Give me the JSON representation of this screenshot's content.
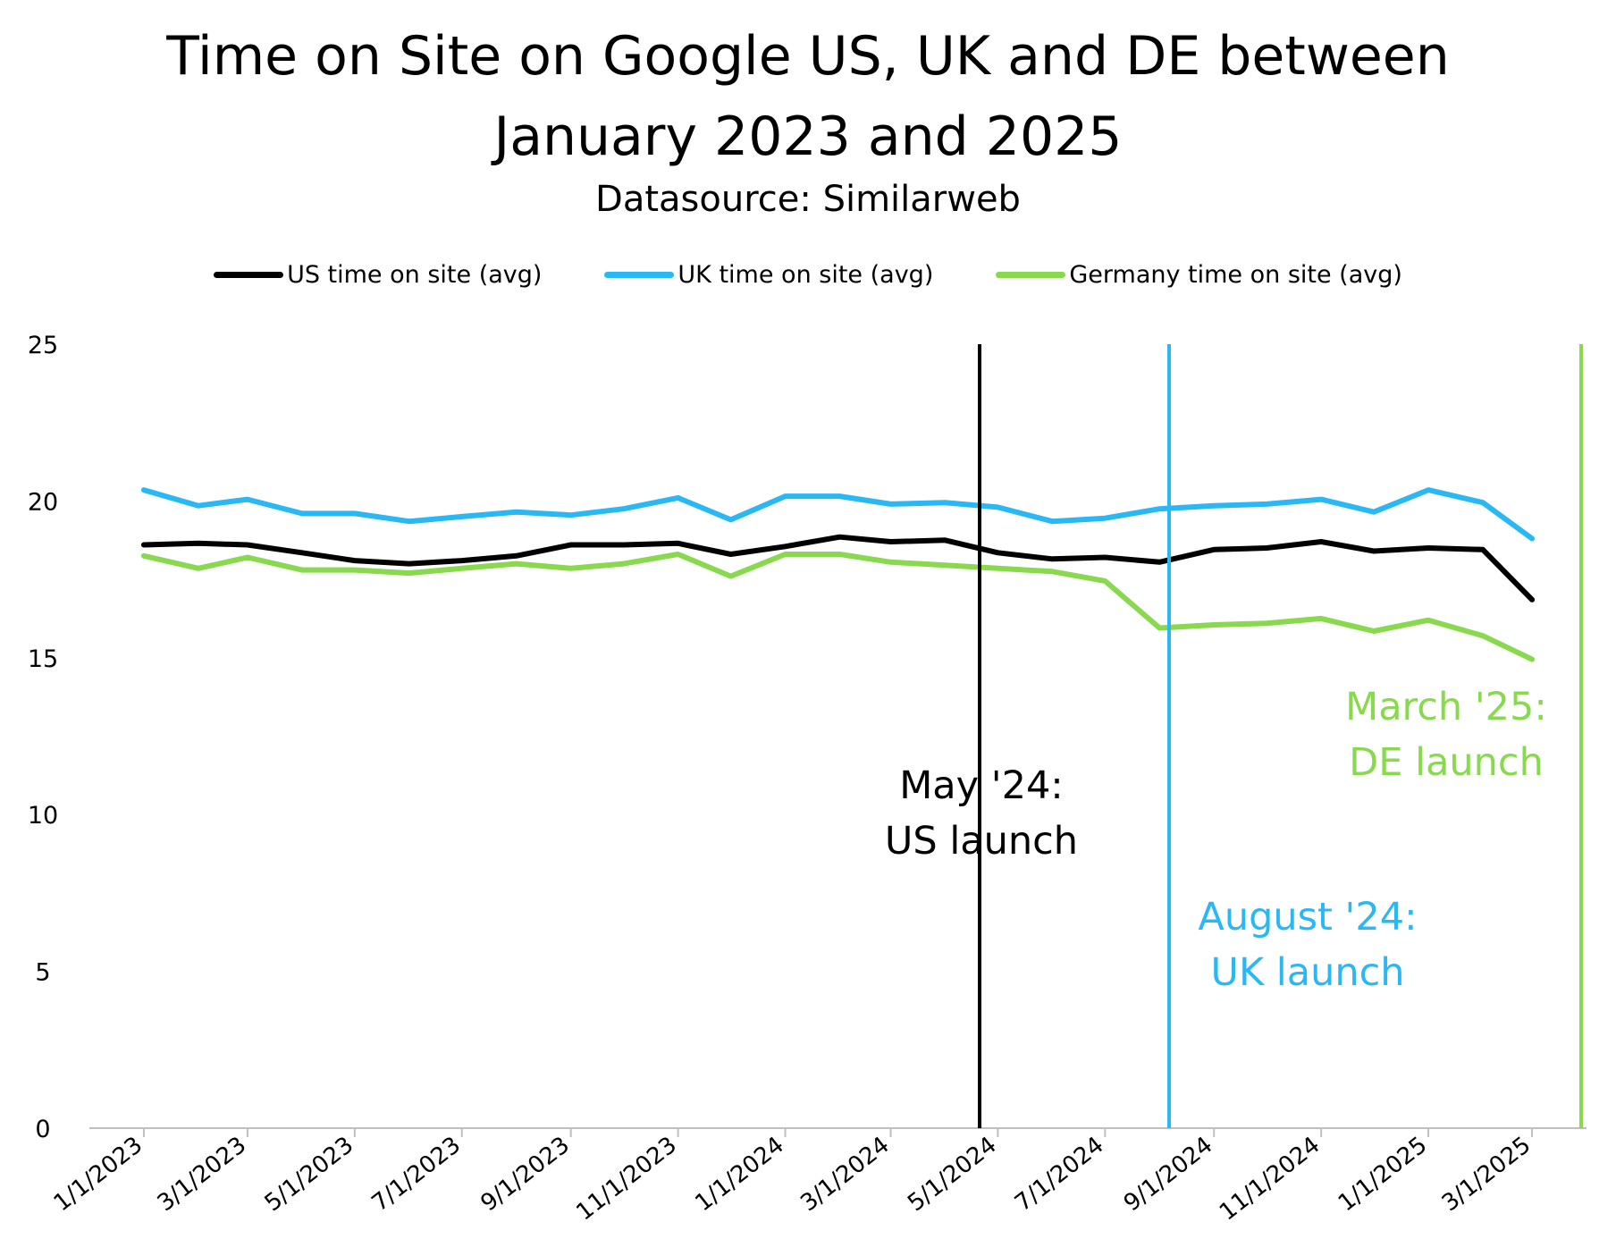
{
  "title_line1": "Time on Site on Google US, UK and DE between",
  "title_line2": "January 2023 and 2025",
  "subtitle": "Datasource: Similarweb",
  "colors": {
    "us": "#000000",
    "uk": "#2ab8f5",
    "de": "#88d94e",
    "axis": "#bfbfbf"
  },
  "chart_data": {
    "type": "line",
    "title": "Time on Site on Google US, UK and DE between January 2023 and 2025",
    "subtitle": "Datasource: Similarweb",
    "xlabel": "",
    "ylabel": "",
    "ylim": [
      0,
      25
    ],
    "yticks": [
      0,
      5,
      10,
      15,
      20,
      25
    ],
    "grid": false,
    "legend_position": "top",
    "x": [
      "1/1/2023",
      "2/1/2023",
      "3/1/2023",
      "4/1/2023",
      "5/1/2023",
      "6/1/2023",
      "7/1/2023",
      "8/1/2023",
      "9/1/2023",
      "10/1/2023",
      "11/1/2023",
      "12/1/2023",
      "1/1/2024",
      "2/1/2024",
      "3/1/2024",
      "4/1/2024",
      "5/1/2024",
      "6/1/2024",
      "7/1/2024",
      "8/1/2024",
      "9/1/2024",
      "10/1/2024",
      "11/1/2024",
      "12/1/2024",
      "1/1/2025",
      "2/1/2025",
      "3/1/2025"
    ],
    "x_tick_labels": [
      "1/1/2023",
      "3/1/2023",
      "5/1/2023",
      "7/1/2023",
      "9/1/2023",
      "11/1/2023",
      "1/1/2024",
      "3/1/2024",
      "5/1/2024",
      "7/1/2024",
      "9/1/2024",
      "11/1/2024",
      "1/1/2025",
      "3/1/2025"
    ],
    "series": [
      {
        "name": "US time on site (avg)",
        "color": "#000000",
        "values": [
          18.6,
          18.65,
          18.6,
          18.35,
          18.1,
          18.0,
          18.1,
          18.25,
          18.6,
          18.6,
          18.65,
          18.3,
          18.55,
          18.85,
          18.7,
          18.75,
          18.35,
          18.15,
          18.2,
          18.05,
          18.45,
          18.5,
          18.7,
          18.4,
          18.5,
          18.45,
          16.85
        ]
      },
      {
        "name": "UK time on site (avg)",
        "color": "#2ab8f5",
        "values": [
          20.35,
          19.85,
          20.05,
          19.6,
          19.6,
          19.35,
          19.5,
          19.65,
          19.55,
          19.75,
          20.1,
          19.4,
          20.15,
          20.15,
          19.9,
          19.95,
          19.8,
          19.35,
          19.45,
          19.75,
          19.85,
          19.9,
          20.05,
          19.65,
          20.35,
          19.95,
          18.8
        ]
      },
      {
        "name": "Germany time on site (avg)",
        "color": "#88d94e",
        "values": [
          18.25,
          17.85,
          18.2,
          17.8,
          17.8,
          17.7,
          17.85,
          18.0,
          17.85,
          18.0,
          18.3,
          17.6,
          18.3,
          18.3,
          18.05,
          17.95,
          17.85,
          17.75,
          17.45,
          15.95,
          16.05,
          16.1,
          16.25,
          15.85,
          16.2,
          15.7,
          14.95
        ]
      }
    ],
    "annotations": [
      {
        "x": "5/1/2024",
        "lines": [
          "May '24:",
          "US launch"
        ],
        "color": "#000000"
      },
      {
        "x": "8/1/2024",
        "lines": [
          "August '24:",
          "UK launch"
        ],
        "color": "#2ab8f5"
      },
      {
        "x": "3/1/2025",
        "lines": [
          "March '25:",
          "DE launch"
        ],
        "color": "#88d94e"
      }
    ]
  }
}
